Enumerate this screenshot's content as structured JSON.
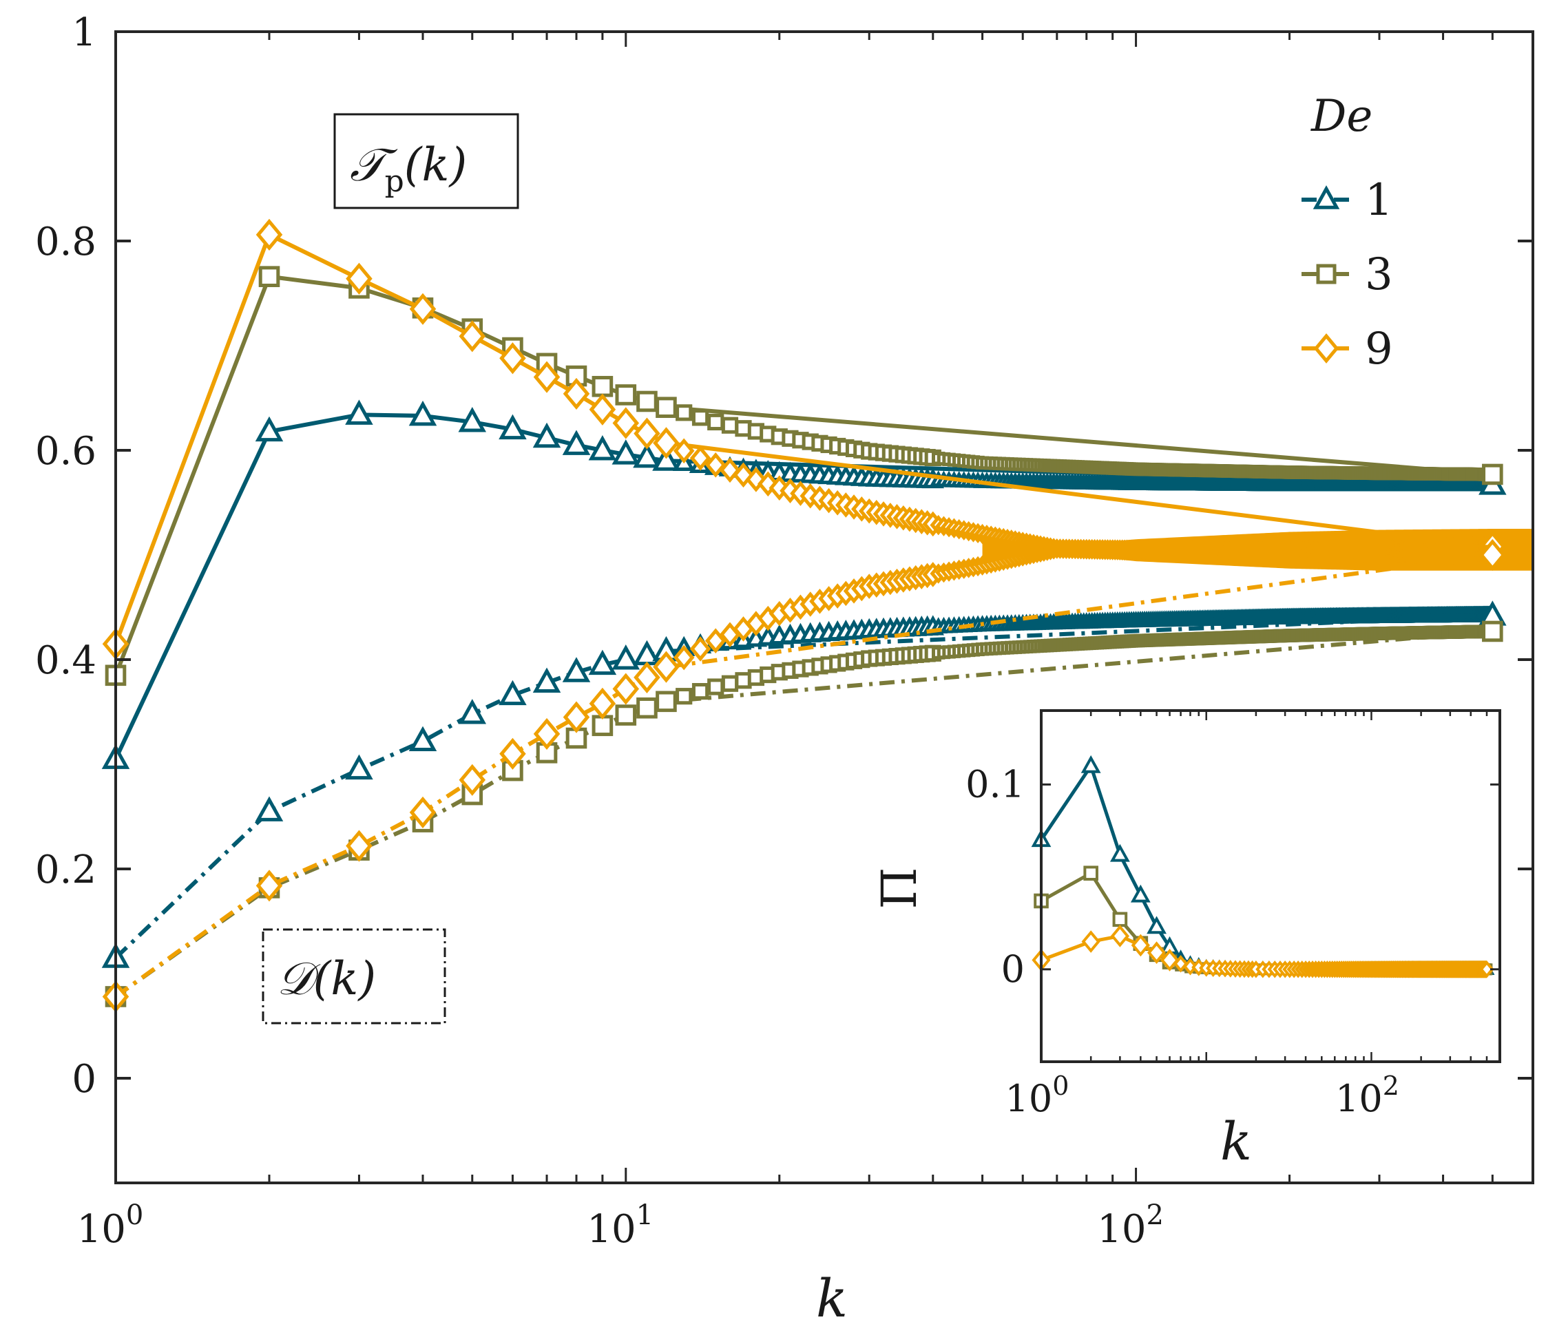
{
  "chart_data": {
    "type": "line",
    "xscale": "log",
    "xlim": [
      1,
      600
    ],
    "ylim": [
      -0.1,
      1.0
    ],
    "xlabel": "k",
    "ylabel": "",
    "x_tick_labels": [
      {
        "value": 1,
        "base": "10",
        "exp": "0"
      },
      {
        "value": 10,
        "base": "10",
        "exp": "1"
      },
      {
        "value": 100,
        "base": "10",
        "exp": "2"
      }
    ],
    "y_ticks": [
      0,
      0.2,
      0.4,
      0.6,
      0.8,
      1.0
    ],
    "y_tick_labels": [
      "0",
      "0.2",
      "0.4",
      "0.6",
      "0.8",
      "1"
    ],
    "legend": {
      "title": "De",
      "placement": "top-right",
      "entries": [
        {
          "label": "1",
          "color": "#005A70",
          "marker": "triangle"
        },
        {
          "label": "3",
          "color": "#7A7A39",
          "marker": "square"
        },
        {
          "label": "9",
          "color": "#EFA000",
          "marker": "diamond"
        }
      ]
    },
    "annotations": {
      "transfer": {
        "base": "𝒯",
        "sub": "p",
        "arg": "(k)"
      },
      "dissipation": {
        "base": "𝒟",
        "arg": "(k)"
      }
    },
    "series": [
      {
        "name": "T_p, De=1",
        "group": "De=1",
        "quantity": "T",
        "linestyle": "solid",
        "color": "#005A70",
        "marker": "triangle",
        "x": [
          1,
          2,
          3,
          4,
          5,
          6,
          7,
          8,
          9,
          10,
          12,
          15,
          20,
          30,
          50,
          100,
          200,
          300,
          500
        ],
        "y": [
          0.305,
          0.618,
          0.634,
          0.633,
          0.627,
          0.62,
          0.612,
          0.605,
          0.6,
          0.596,
          0.59,
          0.584,
          0.578,
          0.573,
          0.57,
          0.568,
          0.567,
          0.567,
          0.567
        ]
      },
      {
        "name": "D, De=1",
        "group": "De=1",
        "quantity": "D",
        "linestyle": "dashdot",
        "color": "#005A70",
        "marker": "triangle",
        "x": [
          1,
          2,
          3,
          4,
          5,
          6,
          7,
          8,
          9,
          10,
          12,
          15,
          20,
          30,
          50,
          100,
          200,
          300,
          500
        ],
        "y": [
          0.115,
          0.255,
          0.295,
          0.322,
          0.348,
          0.366,
          0.378,
          0.388,
          0.395,
          0.4,
          0.408,
          0.416,
          0.422,
          0.428,
          0.433,
          0.437,
          0.44,
          0.441,
          0.442
        ]
      },
      {
        "name": "T_p, De=3",
        "group": "De=3",
        "quantity": "T",
        "linestyle": "solid",
        "color": "#7A7A39",
        "marker": "square",
        "x": [
          1,
          2,
          3,
          4,
          5,
          6,
          7,
          8,
          9,
          10,
          12,
          15,
          20,
          30,
          50,
          100,
          200,
          300,
          500
        ],
        "y": [
          0.385,
          0.766,
          0.755,
          0.736,
          0.716,
          0.698,
          0.683,
          0.671,
          0.661,
          0.653,
          0.641,
          0.627,
          0.613,
          0.599,
          0.588,
          0.582,
          0.579,
          0.578,
          0.577
        ]
      },
      {
        "name": "D, De=3",
        "group": "De=3",
        "quantity": "D",
        "linestyle": "dashdot",
        "color": "#7A7A39",
        "marker": "square",
        "x": [
          1,
          2,
          3,
          4,
          5,
          6,
          7,
          8,
          9,
          10,
          12,
          15,
          20,
          30,
          50,
          100,
          200,
          300,
          500
        ],
        "y": [
          0.078,
          0.182,
          0.218,
          0.245,
          0.271,
          0.294,
          0.311,
          0.325,
          0.337,
          0.347,
          0.36,
          0.374,
          0.388,
          0.401,
          0.41,
          0.418,
          0.423,
          0.425,
          0.427
        ]
      },
      {
        "name": "T_p, De=9",
        "group": "De=9",
        "quantity": "T",
        "linestyle": "solid",
        "color": "#EFA000",
        "marker": "diamond",
        "x": [
          1,
          2,
          3,
          4,
          5,
          6,
          7,
          8,
          9,
          10,
          12,
          15,
          20,
          30,
          50,
          70,
          100,
          200,
          300,
          500
        ],
        "y": [
          0.415,
          0.806,
          0.764,
          0.735,
          0.709,
          0.688,
          0.67,
          0.654,
          0.639,
          0.626,
          0.607,
          0.586,
          0.564,
          0.542,
          0.52,
          0.506,
          0.504,
          0.505,
          0.506,
          0.508
        ]
      },
      {
        "name": "D, De=9",
        "group": "De=9",
        "quantity": "D",
        "linestyle": "dashdot",
        "color": "#EFA000",
        "marker": "diamond",
        "x": [
          1,
          2,
          3,
          4,
          5,
          6,
          7,
          8,
          9,
          10,
          12,
          15,
          20,
          30,
          50,
          70,
          100,
          200,
          300,
          500
        ],
        "y": [
          0.078,
          0.184,
          0.222,
          0.254,
          0.285,
          0.31,
          0.329,
          0.345,
          0.358,
          0.372,
          0.393,
          0.418,
          0.444,
          0.47,
          0.49,
          0.506,
          0.505,
          0.503,
          0.502,
          0.5
        ]
      }
    ],
    "band": {
      "color": "#EFA000",
      "x": [
        50,
        70,
        100,
        200,
        300,
        500
      ],
      "upper": [
        0.52,
        0.508,
        0.515,
        0.522,
        0.524,
        0.525
      ],
      "lower": [
        0.49,
        0.502,
        0.494,
        0.487,
        0.485,
        0.485
      ]
    },
    "inset": {
      "type": "line",
      "xscale": "log",
      "xlim": [
        1,
        600
      ],
      "ylim": [
        -0.05,
        0.14
      ],
      "ylabel": "Π",
      "xlabel": "k",
      "x_tick_labels": [
        {
          "value": 1,
          "base": "10",
          "exp": "0"
        },
        {
          "value": 100,
          "base": "10",
          "exp": "2"
        }
      ],
      "y_ticks": [
        0,
        0.1
      ],
      "y_tick_labels": [
        "0",
        "0.1"
      ],
      "series": [
        {
          "name": "Pi, De=1",
          "color": "#005A70",
          "marker": "triangle",
          "x": [
            1,
            2,
            3,
            4,
            5,
            6,
            7,
            8,
            10,
            15,
            20,
            50,
            100,
            200,
            500
          ],
          "y": [
            0.07,
            0.11,
            0.062,
            0.04,
            0.023,
            0.012,
            0.006,
            0.003,
            0.001,
            0.0003,
            0.0001,
            0,
            0,
            0,
            0
          ]
        },
        {
          "name": "Pi, De=3",
          "color": "#7A7A39",
          "marker": "square",
          "x": [
            1,
            2,
            3,
            4,
            5,
            6,
            7,
            8,
            10,
            15,
            20,
            50,
            100,
            200,
            500
          ],
          "y": [
            0.037,
            0.052,
            0.027,
            0.014,
            0.008,
            0.004,
            0.002,
            0.001,
            0.0005,
            0.0001,
            0,
            0,
            0,
            0,
            0
          ]
        },
        {
          "name": "Pi, De=9",
          "color": "#EFA000",
          "marker": "diamond",
          "x": [
            1,
            2,
            3,
            4,
            5,
            6,
            7,
            8,
            10,
            15,
            20,
            50,
            100,
            200,
            500
          ],
          "y": [
            0.005,
            0.015,
            0.018,
            0.013,
            0.009,
            0.005,
            0.003,
            0.0015,
            0.0007,
            0.0002,
            0,
            0,
            0,
            0,
            0
          ]
        }
      ]
    }
  }
}
